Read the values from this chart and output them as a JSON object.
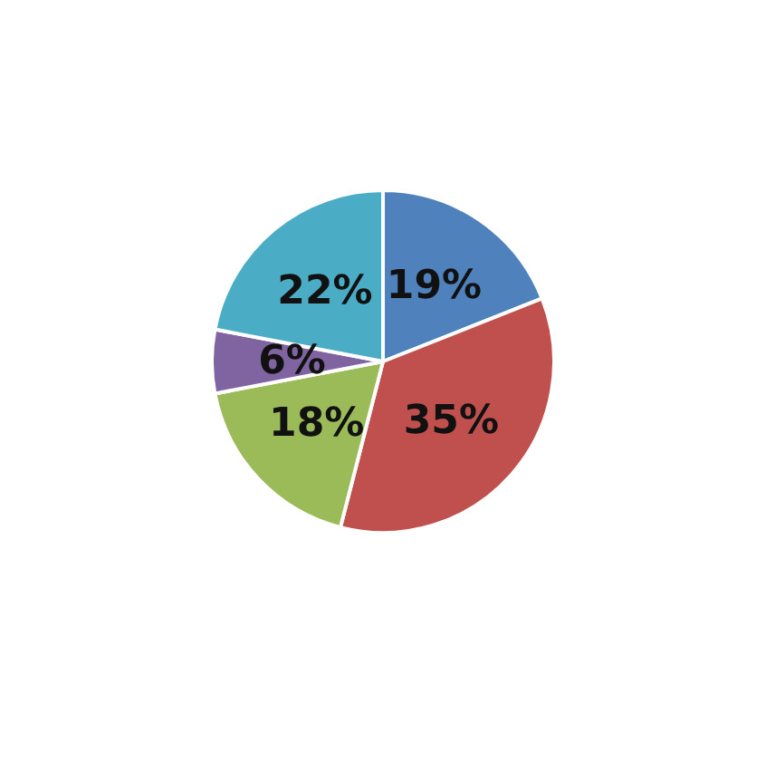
{
  "chart_data": {
    "type": "pie",
    "categories": [
      null,
      null,
      null,
      null,
      null
    ],
    "values": [
      19,
      35,
      18,
      6,
      22
    ],
    "colors": [
      "#4f81bd",
      "#c0504d",
      "#9bbb59",
      "#8064a2",
      "#4bacc6"
    ],
    "value_labels": [
      "19%",
      "35%",
      "18%",
      "6%",
      "22%"
    ]
  }
}
